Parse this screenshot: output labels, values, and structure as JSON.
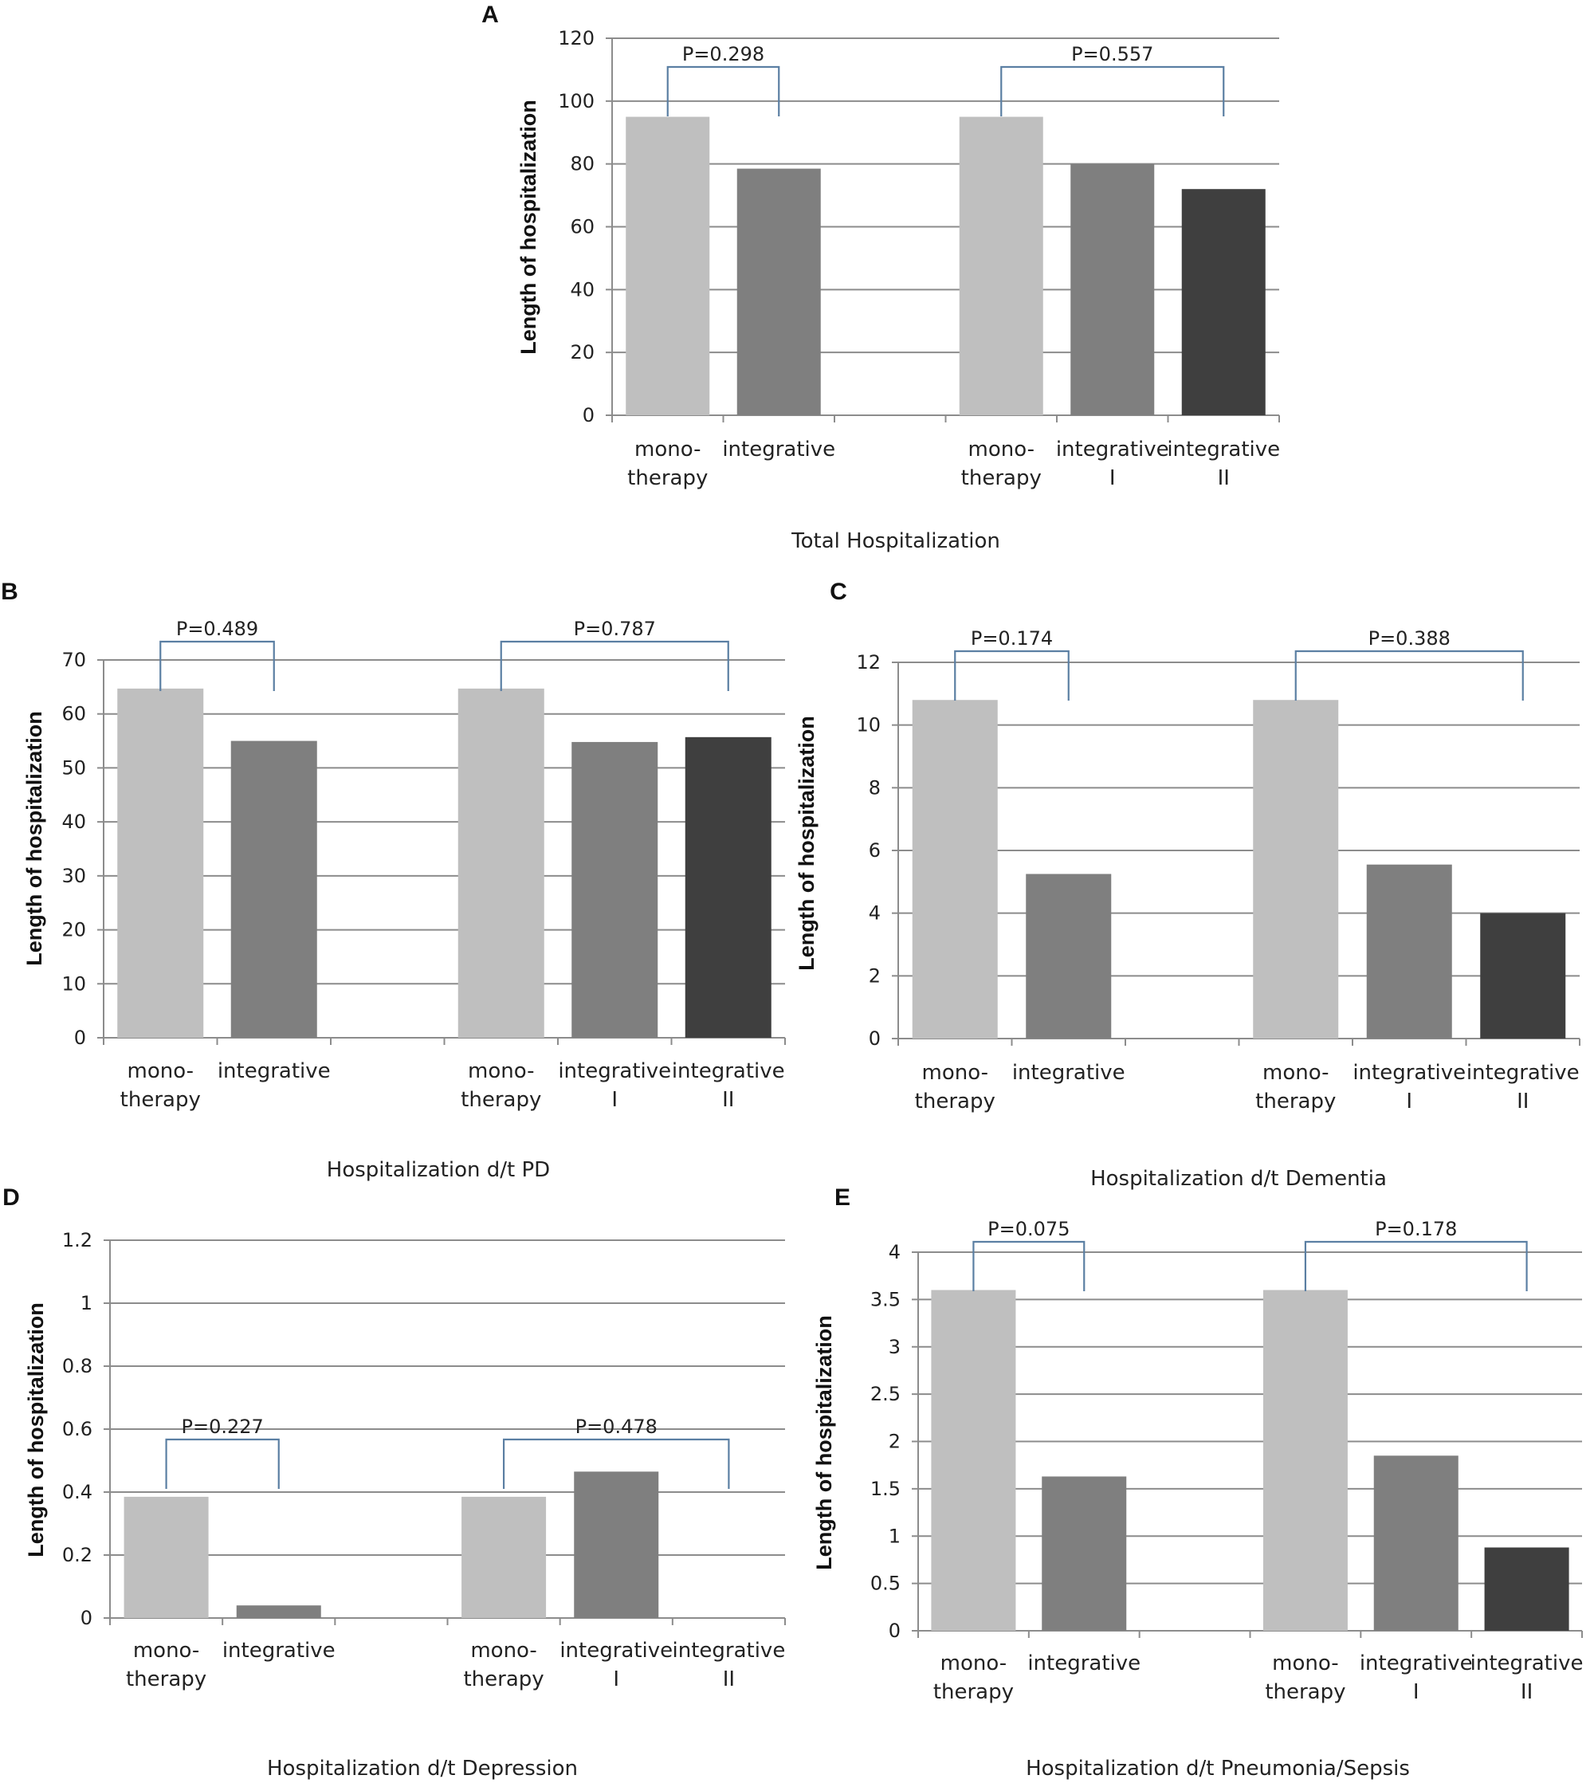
{
  "chart_data": [
    {
      "panel": "A",
      "type": "bar",
      "title": "Total Hospitalization",
      "ylabel": "Length of hospitalization",
      "ylim": [
        0,
        120
      ],
      "yticks": [
        "0",
        "20",
        "40",
        "60",
        "80",
        "100",
        "120"
      ],
      "categories": [
        "mono-|therapy",
        "integrative",
        "",
        "mono-|therapy",
        "integrative|I",
        "integrative|II"
      ],
      "values": [
        95,
        78.5,
        null,
        95,
        80,
        72
      ],
      "shades": [
        "#bfbfbf",
        "#7f7f7f",
        null,
        "#bfbfbf",
        "#7f7f7f",
        "#3f3f3f"
      ],
      "comparisons": [
        {
          "label": "P=0.298",
          "from": 0,
          "to": 1
        },
        {
          "label": "P=0.557",
          "from": 3,
          "to": 5
        }
      ]
    },
    {
      "panel": "B",
      "type": "bar",
      "title": "Hospitalization  d/t  PD",
      "ylabel": "Length of hospitalization",
      "ylim": [
        0,
        70
      ],
      "yticks": [
        "0",
        "10",
        "20",
        "30",
        "40",
        "50",
        "60",
        "70"
      ],
      "categories": [
        "mono-|therapy",
        "integrative",
        "",
        "mono-|therapy",
        "integrative|I",
        "integrative|II"
      ],
      "values": [
        64.7,
        55,
        null,
        64.7,
        54.8,
        55.7
      ],
      "shades": [
        "#bfbfbf",
        "#7f7f7f",
        null,
        "#bfbfbf",
        "#7f7f7f",
        "#3f3f3f"
      ],
      "comparisons": [
        {
          "label": "P=0.489",
          "from": 0,
          "to": 1
        },
        {
          "label": "P=0.787",
          "from": 3,
          "to": 5
        }
      ]
    },
    {
      "panel": "C",
      "type": "bar",
      "title": "Hospitalization  d/t  Dementia",
      "ylabel": "Length of hospitalization",
      "ylim": [
        0,
        12
      ],
      "yticks": [
        "0",
        "2",
        "4",
        "6",
        "8",
        "10",
        "12"
      ],
      "categories": [
        "mono-|therapy",
        "integrative",
        "",
        "mono-|therapy",
        "integrative|I",
        "integrative|II"
      ],
      "values": [
        10.8,
        5.25,
        null,
        10.8,
        5.55,
        4.0
      ],
      "shades": [
        "#bfbfbf",
        "#7f7f7f",
        null,
        "#bfbfbf",
        "#7f7f7f",
        "#3f3f3f"
      ],
      "comparisons": [
        {
          "label": "P=0.174",
          "from": 0,
          "to": 1
        },
        {
          "label": "P=0.388",
          "from": 3,
          "to": 5
        }
      ]
    },
    {
      "panel": "D",
      "type": "bar",
      "title": "Hospitalization  d/t  Depression",
      "ylabel": "Length of hospitalization",
      "ylim": [
        0,
        1.2
      ],
      "yticks": [
        "0",
        "0.2",
        "0.4",
        "0.6",
        "0.8",
        "1",
        "1.2"
      ],
      "categories": [
        "mono-|therapy",
        "integrative",
        "",
        "mono-|therapy",
        "integrative|I",
        "integrative|II"
      ],
      "values": [
        0.385,
        0.04,
        null,
        0.385,
        0.465,
        0
      ],
      "shades": [
        "#bfbfbf",
        "#7f7f7f",
        null,
        "#bfbfbf",
        "#7f7f7f",
        "#3f3f3f"
      ],
      "comparisons": [
        {
          "label": "P=0.227",
          "from": 0,
          "to": 1
        },
        {
          "label": "P=0.478",
          "from": 3,
          "to": 5
        }
      ]
    },
    {
      "panel": "E",
      "type": "bar",
      "title": "Hospitalization  d/t  Pneumonia/Sepsis",
      "ylabel": "Length of hospitalization",
      "ylim": [
        0,
        4
      ],
      "yticks": [
        "0",
        "0.5",
        "1",
        "1.5",
        "2",
        "2.5",
        "3",
        "3.5",
        "4"
      ],
      "categories": [
        "mono-|therapy",
        "integrative",
        "",
        "mono-|therapy",
        "integrative|I",
        "integrative|II"
      ],
      "values": [
        3.6,
        1.63,
        null,
        3.6,
        1.85,
        0.88
      ],
      "shades": [
        "#bfbfbf",
        "#7f7f7f",
        null,
        "#bfbfbf",
        "#7f7f7f",
        "#3f3f3f"
      ],
      "comparisons": [
        {
          "label": "P=0.075",
          "from": 0,
          "to": 1
        },
        {
          "label": "P=0.178",
          "from": 3,
          "to": 5
        }
      ]
    }
  ]
}
